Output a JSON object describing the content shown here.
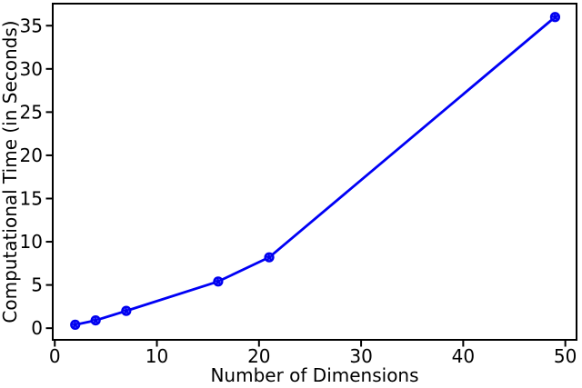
{
  "chart_data": {
    "type": "line",
    "title": "",
    "xlabel": "Number of Dimensions",
    "ylabel": "Computational Time (in Seconds)",
    "x": [
      2,
      4,
      7,
      16,
      21,
      49
    ],
    "y": [
      0.4,
      0.9,
      2.0,
      5.4,
      8.2,
      36.0
    ],
    "xticks": [
      0,
      10,
      20,
      30,
      40,
      50
    ],
    "yticks": [
      0,
      5,
      10,
      15,
      20,
      25,
      30,
      35
    ],
    "xlim": [
      -0.2,
      51.1
    ],
    "ylim": [
      -1.35,
      37.55
    ],
    "grid": false,
    "legend_position": "none",
    "line_color": "#0000f5",
    "marker_color": "#0000ee",
    "marker_inner_ring_color": "#4d4dff",
    "axis_color": "#000000",
    "text_color": "#000000",
    "background_color": "#ffffff",
    "tick_font_size": 20,
    "label_font_size": 20
  }
}
